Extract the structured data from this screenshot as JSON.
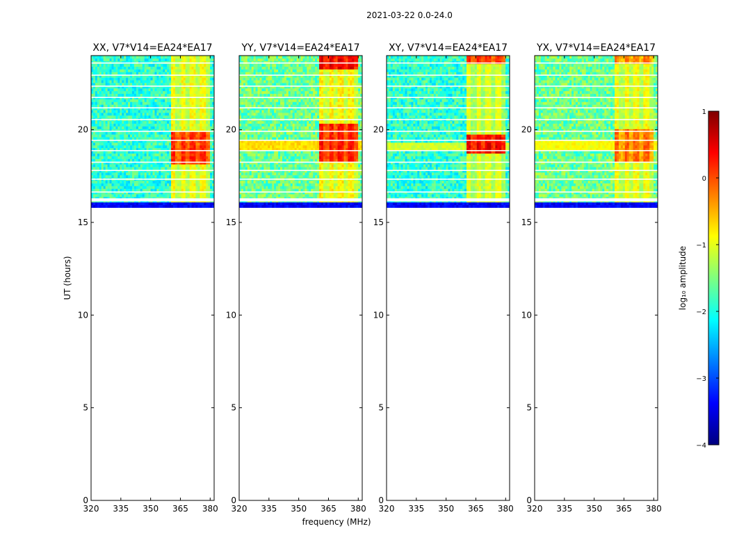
{
  "figure": {
    "suptitle": "2021-03-22 0.0-24.0",
    "xlabel": "frequency (MHz)",
    "ylabel": "UT (hours)"
  },
  "colorbar": {
    "label": "log₁₀ amplitude",
    "range": [
      -4,
      1
    ],
    "ticks": [
      "1",
      "0",
      "−1",
      "−2",
      "−3",
      "−4"
    ],
    "colormap": "jet",
    "stops": [
      "#00007f",
      "#0000ff",
      "#007fff",
      "#00ffff",
      "#7fff7f",
      "#ffff00",
      "#ff7f00",
      "#ff0000",
      "#7f0000"
    ]
  },
  "chart_data": [
    {
      "type": "heatmap",
      "title": "XX, V7*V14=EA24*EA17",
      "xlim": [
        320,
        382
      ],
      "ylim": [
        0,
        24
      ],
      "xticks": [
        320,
        335,
        350,
        365,
        380
      ],
      "yticks": [
        0,
        5,
        10,
        15,
        20
      ],
      "data_time_range": [
        15.8,
        24
      ],
      "background_log_amp": -1.9,
      "bands": [
        {
          "freq": [
            360,
            380
          ],
          "time": [
            15.8,
            24
          ],
          "log_amp": -0.9
        },
        {
          "freq": [
            360,
            380
          ],
          "time": [
            18.2,
            19.9
          ],
          "log_amp": 0.2
        }
      ],
      "narrow_feature": null
    },
    {
      "type": "heatmap",
      "title": "YY, V7*V14=EA24*EA17",
      "xlim": [
        320,
        382
      ],
      "ylim": [
        0,
        24
      ],
      "xticks": [
        320,
        335,
        350,
        365,
        380
      ],
      "yticks": [
        0,
        5,
        10,
        15,
        20
      ],
      "data_time_range": [
        15.8,
        24
      ],
      "background_log_amp": -1.6,
      "bands": [
        {
          "freq": [
            360,
            380
          ],
          "time": [
            15.8,
            24
          ],
          "log_amp": -0.8
        },
        {
          "freq": [
            360,
            380
          ],
          "time": [
            18.3,
            20.4
          ],
          "log_amp": 0.3
        },
        {
          "freq": [
            360,
            380
          ],
          "time": [
            23.3,
            24
          ],
          "log_amp": 0.5
        }
      ],
      "narrow_feature": {
        "time": [
          18.9,
          19.5
        ],
        "log_amp": -0.7
      }
    },
    {
      "type": "heatmap",
      "title": "XY, V7*V14=EA24*EA17",
      "xlim": [
        320,
        382
      ],
      "ylim": [
        0,
        24
      ],
      "xticks": [
        320,
        335,
        350,
        365,
        380
      ],
      "yticks": [
        0,
        5,
        10,
        15,
        20
      ],
      "data_time_range": [
        15.8,
        24
      ],
      "background_log_amp": -1.9,
      "bands": [
        {
          "freq": [
            360,
            380
          ],
          "time": [
            15.8,
            24
          ],
          "log_amp": -1.0
        },
        {
          "freq": [
            360,
            380
          ],
          "time": [
            18.7,
            19.7
          ],
          "log_amp": 0.5
        },
        {
          "freq": [
            360,
            380
          ],
          "time": [
            23.5,
            24
          ],
          "log_amp": 0.2
        }
      ],
      "narrow_feature": {
        "time": [
          18.9,
          19.3
        ],
        "log_amp": -1.1
      }
    },
    {
      "type": "heatmap",
      "title": "YX, V7*V14=EA24*EA17",
      "xlim": [
        320,
        382
      ],
      "ylim": [
        0,
        24
      ],
      "xticks": [
        320,
        335,
        350,
        365,
        380
      ],
      "yticks": [
        0,
        5,
        10,
        15,
        20
      ],
      "data_time_range": [
        15.8,
        24
      ],
      "background_log_amp": -1.6,
      "bands": [
        {
          "freq": [
            360,
            380
          ],
          "time": [
            15.8,
            24
          ],
          "log_amp": -0.9
        },
        {
          "freq": [
            360,
            380
          ],
          "time": [
            18.3,
            20.0
          ],
          "log_amp": -0.1
        },
        {
          "freq": [
            360,
            380
          ],
          "time": [
            23.5,
            24
          ],
          "log_amp": -0.2
        }
      ],
      "narrow_feature": {
        "time": [
          18.9,
          19.4
        ],
        "log_amp": -0.9
      }
    }
  ]
}
